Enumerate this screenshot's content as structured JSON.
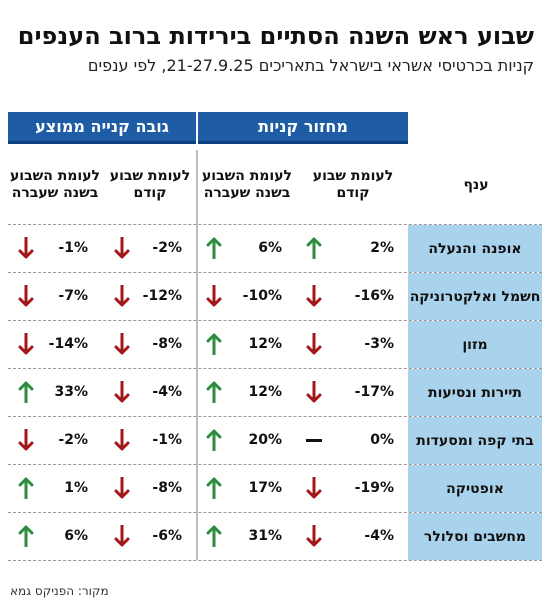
{
  "title": "שבוע ראש השנה הסתיים בירידות ברוב הענפים",
  "subtitle": "קניות בכרטיסי אשראי בישראל בתאריכים 21-27.9.25, לפי ענפים",
  "source": "מקור: הפניקס גמא",
  "colors": {
    "header_blue": "#1f5ca6",
    "row_label_bg": "#a9d3ec",
    "up": "#2e8b3e",
    "down": "#a21818"
  },
  "chart_data": {
    "type": "table",
    "groups": [
      {
        "name": "מחזור קניות",
        "columns": [
          "לעומת שבוע קודם",
          "לעומת השבוע בשנה שעברה"
        ]
      },
      {
        "name": "גובה קנייה ממוצע",
        "columns": [
          "לעומת שבוע קודם",
          "לעומת השבוע בשנה שעברה"
        ]
      }
    ],
    "row_header": "ענף",
    "rows": [
      {
        "sector": "אופנה והנעלה",
        "values": [
          "2%",
          "6%",
          "-2%",
          "-1%"
        ],
        "directions": [
          "up",
          "up",
          "down",
          "down"
        ]
      },
      {
        "sector": "חשמל ואלקטרוניקה",
        "values": [
          "-16%",
          "-10%",
          "-12%",
          "-7%"
        ],
        "directions": [
          "down",
          "down",
          "down",
          "down"
        ]
      },
      {
        "sector": "מזון",
        "values": [
          "-3%",
          "12%",
          "-8%",
          "-14%"
        ],
        "directions": [
          "down",
          "up",
          "down",
          "down"
        ]
      },
      {
        "sector": "תיירות ונסיעות",
        "values": [
          "-17%",
          "12%",
          "-4%",
          "33%"
        ],
        "directions": [
          "down",
          "up",
          "down",
          "up"
        ]
      },
      {
        "sector": "בתי קפה ומסעדות",
        "values": [
          "0%",
          "20%",
          "-1%",
          "-2%"
        ],
        "directions": [
          "flat",
          "up",
          "down",
          "down"
        ]
      },
      {
        "sector": "אופטיקה",
        "values": [
          "-19%",
          "17%",
          "-8%",
          "1%"
        ],
        "directions": [
          "down",
          "up",
          "down",
          "up"
        ]
      },
      {
        "sector": "מחשבים וסלולר",
        "values": [
          "-4%",
          "31%",
          "-6%",
          "6%"
        ],
        "directions": [
          "down",
          "up",
          "down",
          "up"
        ]
      }
    ]
  }
}
